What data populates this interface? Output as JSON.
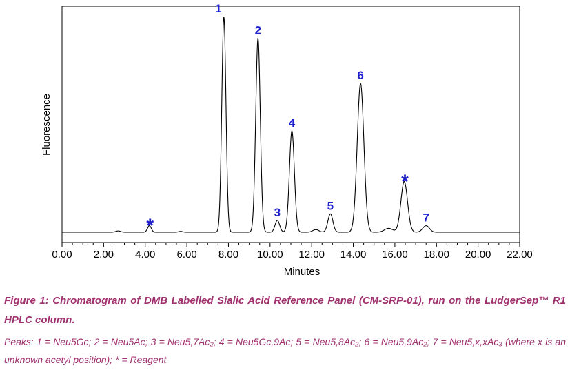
{
  "chart_data": {
    "type": "line",
    "title": "",
    "xlabel": "Minutes",
    "ylabel": "Fluorescence",
    "xlim": [
      0,
      22
    ],
    "x_ticks": [
      "0.00",
      "2.00",
      "4.00",
      "6.00",
      "8.00",
      "10.00",
      "12.00",
      "14.00",
      "16.00",
      "18.00",
      "20.00",
      "22.00"
    ],
    "y_ticks_shown": false,
    "grid": false,
    "line_color": "#000000",
    "label_color": "#1f1fd0",
    "peaks": [
      {
        "label": "*",
        "x": 4.2,
        "height": 0.03,
        "width": 0.09
      },
      {
        "label": "1",
        "x": 7.78,
        "height": 1.0,
        "width": 0.1
      },
      {
        "label": "2",
        "x": 9.42,
        "height": 0.9,
        "width": 0.11
      },
      {
        "label": "3",
        "x": 10.35,
        "height": 0.055,
        "width": 0.11
      },
      {
        "label": "4",
        "x": 11.05,
        "height": 0.47,
        "width": 0.12
      },
      {
        "label": "5",
        "x": 12.9,
        "height": 0.085,
        "width": 0.12
      },
      {
        "label": "6",
        "x": 14.35,
        "height": 0.69,
        "width": 0.16
      },
      {
        "label": "*",
        "x": 16.45,
        "height": 0.235,
        "width": 0.16
      },
      {
        "label": "7",
        "x": 17.5,
        "height": 0.03,
        "width": 0.16
      }
    ],
    "minor_bumps": [
      {
        "x": 2.7,
        "height": 0.006,
        "width": 0.12
      },
      {
        "x": 5.7,
        "height": 0.004,
        "width": 0.1
      },
      {
        "x": 12.2,
        "height": 0.012,
        "width": 0.15
      },
      {
        "x": 15.7,
        "height": 0.018,
        "width": 0.2
      }
    ]
  },
  "caption": {
    "title": "Figure 1: Chromatogram of DMB Labelled Sialic Acid Reference Panel (CM-SRP-01), run on the LudgerSep™ R1 HPLC column.",
    "peaks": "Peaks: 1 = Neu5Gc; 2 = Neu5Ac; 3 = Neu5,7Ac₂; 4 = Neu5Gc,9Ac; 5 = Neu5,8Ac₂; 6 = Neu5,9Ac₂; 7 = Neu5,x,xAc₃ (where x is an unknown acetyl position); * = Reagent"
  }
}
